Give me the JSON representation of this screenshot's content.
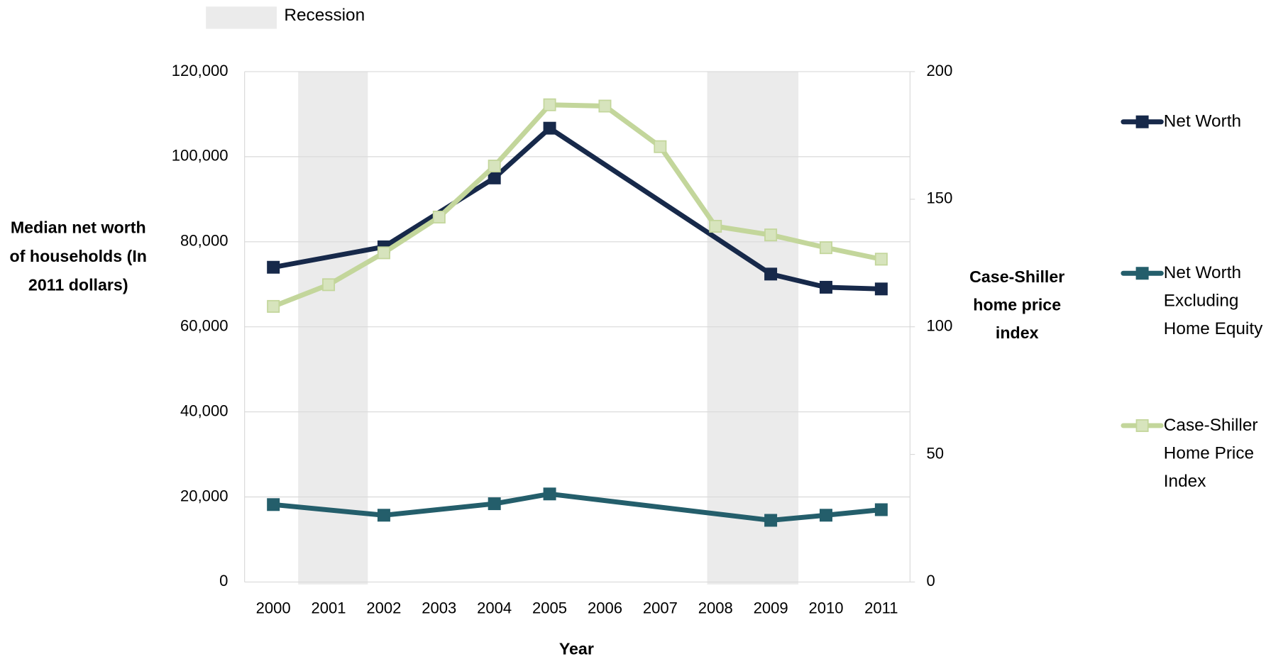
{
  "chart_data": {
    "type": "line",
    "x_label": "Year",
    "y_label": "Median net worth of households (In 2011 dollars)",
    "y2_label": "Case-Shiller home price index",
    "xlim": [
      1999.48,
      2011.52
    ],
    "xticks": [
      2000,
      2001,
      2002,
      2003,
      2004,
      2005,
      2006,
      2007,
      2008,
      2009,
      2010,
      2011
    ],
    "ylim": [
      0,
      120000
    ],
    "yticks": [
      0,
      {
        "value": 20000,
        "label": "20,000"
      },
      {
        "value": 40000,
        "label": "40,000"
      },
      {
        "value": 60000,
        "label": "60,000"
      },
      {
        "value": 80000,
        "label": "80,000"
      },
      {
        "value": 100000,
        "label": "100,000"
      },
      {
        "value": 120000,
        "label": "120,000"
      }
    ],
    "y2lim": [
      0,
      200
    ],
    "y2ticks": [
      0,
      50,
      100,
      150,
      200
    ],
    "grid": true,
    "legend": "right",
    "recession": {
      "label": "Recession",
      "color": "#ebebeb",
      "periods": [
        [
          2000.45,
          2001.71
        ],
        [
          2007.85,
          2009.5
        ]
      ]
    },
    "series": [
      {
        "name": "Net Worth",
        "color": "#17294a",
        "marker_fill": "#17294a",
        "x": [
          2000,
          2002,
          2004,
          2005,
          2009,
          2010,
          2011
        ],
        "values": [
          74000,
          78800,
          95000,
          106700,
          72400,
          69300,
          68900
        ]
      },
      {
        "name": "Net Worth Excluding Home Equity",
        "color": "#245e6b",
        "marker_fill": "#245e6b",
        "x": [
          2000,
          2002,
          2004,
          2005,
          2009,
          2010,
          2011
        ],
        "values": [
          18200,
          15700,
          18400,
          20700,
          14500,
          15700,
          17000
        ]
      },
      {
        "name": "Case-Shiller Home Price Index",
        "color": "#c3d69b",
        "marker_fill": "#d7e4bd",
        "axis": "y2",
        "x": [
          2000,
          2001,
          2002,
          2003,
          2004,
          2005,
          2006,
          2007,
          2008,
          2009,
          2010,
          2011
        ],
        "values": [
          108,
          116.5,
          129,
          143,
          163,
          187,
          186.5,
          170.6,
          139.4,
          136,
          131,
          126.5
        ]
      }
    ]
  }
}
